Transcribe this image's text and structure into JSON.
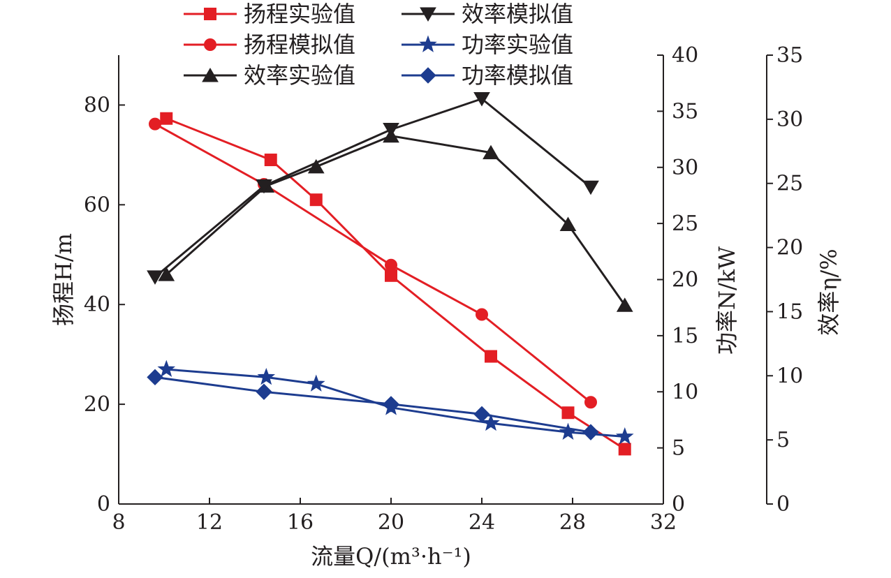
{
  "chart_data": {
    "type": "line",
    "x_axis": {
      "label": "流量Q/(m³·h⁻¹)",
      "range": [
        8,
        32
      ],
      "ticks": [
        8,
        12,
        16,
        20,
        24,
        28,
        32
      ]
    },
    "axes": {
      "head": {
        "label": "扬程H/m",
        "range": [
          0,
          90
        ],
        "ticks": [
          0,
          20,
          40,
          60,
          80
        ]
      },
      "power": {
        "label": "功率N/kW",
        "range": [
          0,
          40
        ],
        "ticks": [
          0,
          5,
          10,
          15,
          20,
          25,
          30,
          35,
          40
        ]
      },
      "efficiency": {
        "label": "效率η/%",
        "range": [
          0,
          35
        ],
        "ticks": [
          0,
          5,
          10,
          15,
          20,
          25,
          30,
          35
        ]
      }
    },
    "series": [
      {
        "name": "扬程实验值",
        "axis": "head",
        "marker": "square",
        "color": "#e31e24",
        "x": [
          10.1,
          14.7,
          16.7,
          20.0,
          24.4,
          27.8,
          30.3
        ],
        "y": [
          77.3,
          69.0,
          61.0,
          45.8,
          29.6,
          18.3,
          11.0
        ]
      },
      {
        "name": "扬程模拟值",
        "axis": "head",
        "marker": "circle",
        "color": "#e31e24",
        "x": [
          9.6,
          14.4,
          20.0,
          24.0,
          28.8
        ],
        "y": [
          76.2,
          64.1,
          47.9,
          38.0,
          20.4
        ]
      },
      {
        "name": "效率实验值",
        "axis": "efficiency",
        "marker": "triangle-up",
        "color": "#231f20",
        "x": [
          10.1,
          14.5,
          16.7,
          20.0,
          24.4,
          27.8,
          30.3
        ],
        "y": [
          17.9,
          24.8,
          26.3,
          28.7,
          27.4,
          21.8,
          15.5
        ]
      },
      {
        "name": "效率模拟值",
        "axis": "efficiency",
        "marker": "triangle-down",
        "color": "#231f20",
        "x": [
          9.6,
          14.4,
          20.0,
          24.0,
          28.8
        ],
        "y": [
          17.7,
          24.8,
          29.2,
          31.6,
          24.7
        ]
      },
      {
        "name": "功率实验值",
        "axis": "power",
        "marker": "star",
        "color": "#1d3c8f",
        "x": [
          10.1,
          14.5,
          16.7,
          20.0,
          24.4,
          27.8,
          30.3
        ],
        "y": [
          12.0,
          11.3,
          10.7,
          8.6,
          7.2,
          6.4,
          6.0
        ]
      },
      {
        "name": "功率模拟值",
        "axis": "power",
        "marker": "diamond",
        "color": "#1d3c8f",
        "x": [
          9.6,
          14.4,
          20.0,
          24.0,
          28.8
        ],
        "y": [
          11.3,
          10.0,
          8.9,
          8.0,
          6.4
        ]
      }
    ],
    "legend_placement": "top",
    "grid": false
  }
}
